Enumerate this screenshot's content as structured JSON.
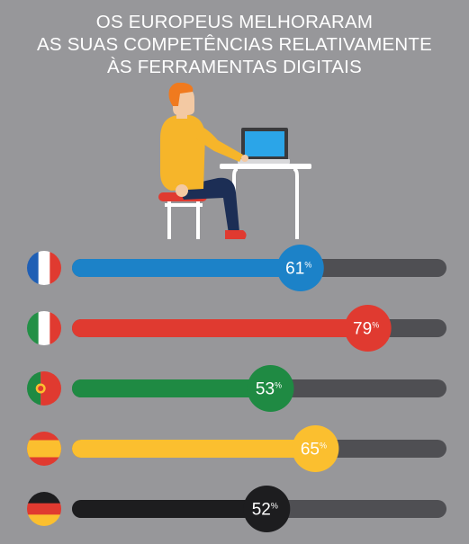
{
  "title_lines": [
    "OS EUROPEUS MELHORARAM",
    "AS SUAS COMPETÊNCIAS RELATIVAMENTE",
    "ÀS FERRAMENTAS DIGITAIS"
  ],
  "chart_data": {
    "type": "bar",
    "orientation": "horizontal",
    "title": "OS EUROPEUS MELHORARAM AS SUAS COMPETÊNCIAS RELATIVAMENTE ÀS FERRAMENTAS DIGITAIS",
    "unit": "%",
    "xlim": [
      0,
      100
    ],
    "categories": [
      "France",
      "Italy",
      "Portugal",
      "Spain",
      "Germany"
    ],
    "values": [
      61,
      79,
      53,
      65,
      52
    ],
    "data_labels": [
      "61",
      "79",
      "53",
      "65",
      "52"
    ],
    "bar_colors": [
      "#1c82c8",
      "#e03a30",
      "#1f8a43",
      "#fbbf2f",
      "#1d1d1f"
    ],
    "track_color": "#4f4f53",
    "flag_icons": [
      "flag-france-icon",
      "flag-italy-icon",
      "flag-portugal-icon",
      "flag-spain-icon",
      "flag-germany-icon"
    ]
  }
}
